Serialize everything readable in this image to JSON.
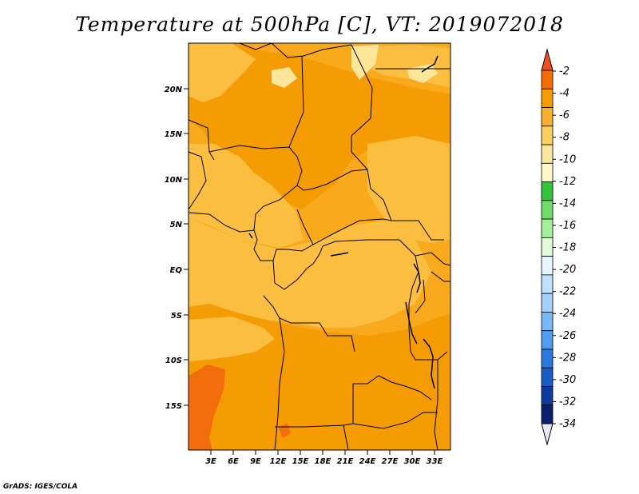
{
  "title": "Temperature at 500hPa [C], VT: 2019072018",
  "footer": "GrADS: IGES/COLA",
  "map": {
    "lat_labels": [
      "20N",
      "15N",
      "10N",
      "5N",
      "EQ",
      "5S",
      "10S",
      "15S"
    ],
    "lon_labels": [
      "3E",
      "6E",
      "9E",
      "12E",
      "15E",
      "18E",
      "21E",
      "24E",
      "27E",
      "30E",
      "33E"
    ]
  },
  "colorbar": {
    "labels": [
      "-2",
      "-4",
      "-6",
      "-8",
      "-10",
      "-12",
      "-14",
      "-16",
      "-18",
      "-20",
      "-22",
      "-24",
      "-26",
      "-28",
      "-30",
      "-32",
      "-34"
    ],
    "colors": [
      "#f0501e",
      "#f56c00",
      "#f59b00",
      "#f7b030",
      "#f9d060",
      "#fbe6a0",
      "#fff7c8",
      "#36c23c",
      "#6fdc6c",
      "#a4ef9c",
      "#e2fad9",
      "#e6f5ff",
      "#bfe0ff",
      "#a2d0f8",
      "#78b8f6",
      "#4f9cf0",
      "#2b79e0",
      "#1a5cc8",
      "#0e3c9e",
      "#0a1e6e",
      "#e8e8f8"
    ],
    "colors_order": "top_to_bottom"
  },
  "colors": {
    "field_base": "#f9a91c",
    "field_warm": "#f59c04",
    "field_cool": "#fbbe40",
    "field_coolest": "#fde69a",
    "field_hot": "#f36d0c",
    "border": "#000000"
  }
}
